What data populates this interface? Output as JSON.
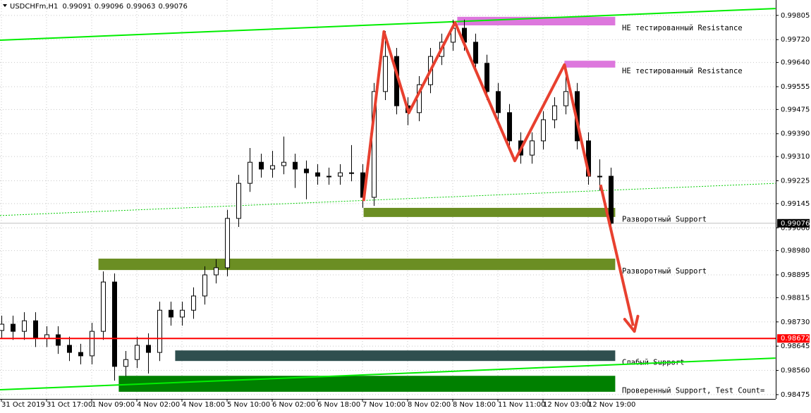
{
  "chart_data": {
    "type": "candlestick",
    "symbol": "USDCHFm,H1",
    "header_values": [
      0.99091,
      0.99096,
      0.99063,
      0.99076
    ],
    "open": [
      0.987,
      0.98722,
      0.98697,
      0.98734,
      0.98672,
      0.98685,
      0.98648,
      0.98623,
      0.98611,
      0.98697,
      0.9887,
      0.98574,
      0.98598,
      0.98648,
      0.98623,
      0.98771,
      0.98747,
      0.98771,
      0.98821,
      0.98895,
      0.9892,
      0.99093,
      0.99216,
      0.9929,
      0.99266,
      0.99278,
      0.9929,
      0.99266,
      0.99253,
      0.99241,
      0.99241,
      0.99253,
      0.99253,
      0.99167,
      0.99538,
      0.99661,
      0.99488,
      0.99464,
      0.99562,
      0.99661,
      0.99711,
      0.9976,
      0.99711,
      0.99637,
      0.99538,
      0.99464,
      0.99365,
      0.99315,
      0.99365,
      0.99439,
      0.99488,
      0.99538,
      0.99365,
      0.99241,
      0.99241
    ],
    "high": [
      0.98752,
      0.98752,
      0.98764,
      0.98764,
      0.98715,
      0.98715,
      0.98678,
      0.98653,
      0.98727,
      0.98907,
      0.989,
      0.98628,
      0.98678,
      0.9869,
      0.98801,
      0.98801,
      0.98801,
      0.98851,
      0.98925,
      0.9895,
      0.99123,
      0.99246,
      0.9934,
      0.9932,
      0.9933,
      0.9938,
      0.9932,
      0.99296,
      0.99283,
      0.99271,
      0.99283,
      0.9935,
      0.99283,
      0.99568,
      0.9975,
      0.99691,
      0.99518,
      0.99592,
      0.99691,
      0.99741,
      0.9979,
      0.9979,
      0.99741,
      0.99667,
      0.99568,
      0.99494,
      0.99395,
      0.99395,
      0.99469,
      0.99518,
      0.9959,
      0.99568,
      0.99395,
      0.993,
      0.99271
    ],
    "low": [
      0.9867,
      0.98667,
      0.98667,
      0.98642,
      0.98642,
      0.98618,
      0.98593,
      0.98581,
      0.98581,
      0.98667,
      0.98524,
      0.9854,
      0.98568,
      0.98549,
      0.98593,
      0.98717,
      0.98717,
      0.98741,
      0.98791,
      0.98865,
      0.9889,
      0.99063,
      0.99186,
      0.99236,
      0.99236,
      0.99248,
      0.992,
      0.9916,
      0.99211,
      0.99211,
      0.99211,
      0.99223,
      0.9913,
      0.99137,
      0.99508,
      0.99458,
      0.9942,
      0.99434,
      0.99532,
      0.99631,
      0.99681,
      0.99681,
      0.99607,
      0.99508,
      0.99434,
      0.99335,
      0.99285,
      0.99285,
      0.99335,
      0.99409,
      0.99458,
      0.99335,
      0.99211,
      0.9919,
      0.9906
    ],
    "close": [
      0.98722,
      0.98697,
      0.98734,
      0.98672,
      0.98685,
      0.98648,
      0.98623,
      0.98611,
      0.98697,
      0.9887,
      0.98574,
      0.98598,
      0.98648,
      0.98623,
      0.98771,
      0.98747,
      0.98771,
      0.98821,
      0.98895,
      0.9892,
      0.99093,
      0.99216,
      0.9929,
      0.99266,
      0.99278,
      0.9929,
      0.99266,
      0.99253,
      0.99241,
      0.99241,
      0.99253,
      0.99253,
      0.99167,
      0.99538,
      0.99661,
      0.99488,
      0.99464,
      0.99562,
      0.99661,
      0.99711,
      0.9976,
      0.99711,
      0.99637,
      0.99538,
      0.99464,
      0.99365,
      0.99315,
      0.99365,
      0.99439,
      0.99488,
      0.99538,
      0.99365,
      0.99241,
      0.99241,
      0.99076
    ],
    "xticks": [
      {
        "value": 0,
        "label": "31 Oct 2019"
      },
      {
        "value": 4,
        "label": "31 Oct 17:00"
      },
      {
        "value": 8,
        "label": "1 Nov 09:00"
      },
      {
        "value": 12,
        "label": "4 Nov 02:00"
      },
      {
        "value": 16,
        "label": "4 Nov 18:00"
      },
      {
        "value": 20,
        "label": "5 Nov 10:00"
      },
      {
        "value": 24,
        "label": "6 Nov 02:00"
      },
      {
        "value": 28,
        "label": "6 Nov 18:00"
      },
      {
        "value": 32,
        "label": "7 Nov 10:00"
      },
      {
        "value": 36,
        "label": "8 Nov 02:00"
      },
      {
        "value": 40,
        "label": "8 Nov 18:00"
      },
      {
        "value": 44,
        "label": "11 Nov 11:00"
      },
      {
        "value": 48,
        "label": "12 Nov 03:00"
      },
      {
        "value": 52,
        "label": "12 Nov 19:00"
      }
    ],
    "ylim": [
      0.9846,
      0.99859
    ],
    "yticks": [
      {
        "value": 0.99805,
        "label": "0.99805"
      },
      {
        "value": 0.9972,
        "label": "0.99720"
      },
      {
        "value": 0.9964,
        "label": "0.99640"
      },
      {
        "value": 0.99555,
        "label": "0.99555"
      },
      {
        "value": 0.99475,
        "label": "0.99475"
      },
      {
        "value": 0.9939,
        "label": "0.99390"
      },
      {
        "value": 0.9931,
        "label": "0.99310"
      },
      {
        "value": 0.99225,
        "label": "0.99225"
      },
      {
        "value": 0.99145,
        "label": "0.99145"
      },
      {
        "value": 0.9906,
        "label": "0.99060"
      },
      {
        "value": 0.9898,
        "label": "0.98980"
      },
      {
        "value": 0.98895,
        "label": "0.98895"
      },
      {
        "value": 0.98815,
        "label": "0.98815"
      },
      {
        "value": 0.9873,
        "label": "0.98730"
      },
      {
        "value": 0.98645,
        "label": "0.98645"
      },
      {
        "value": 0.9856,
        "label": "0.98560"
      },
      {
        "value": 0.98475,
        "label": "0.98475"
      }
    ],
    "last_price": 0.99076,
    "level": 0.98672,
    "zones": [
      {
        "label": "НЕ тестированный Resistance",
        "top": 0.998,
        "bottom": 0.9977,
        "from": 40.4,
        "to": 54.4,
        "color": "#dd77dd"
      },
      {
        "label": "НЕ тестированный Resistance",
        "top": 0.99646,
        "bottom": 0.99622,
        "from": 49.9,
        "to": 54.4,
        "color": "#dd77dd"
      },
      {
        "label": "Разворотный Support",
        "top": 0.9913,
        "bottom": 0.99098,
        "from": 32.1,
        "to": 54.4,
        "color": "#6b8e23"
      },
      {
        "label": "Разворотный Support",
        "top": 0.98952,
        "bottom": 0.98912,
        "from": 8.6,
        "to": 54.4,
        "color": "#6b8e23"
      },
      {
        "label": "Слабый Support",
        "top": 0.9863,
        "bottom": 0.98593,
        "from": 15.4,
        "to": 54.4,
        "color": "#2f4f4f"
      },
      {
        "label": "Проверенный Support, Test Count=",
        "top": 0.98541,
        "bottom": 0.98485,
        "from": 10.4,
        "to": 54.4,
        "color": "#008000"
      }
    ],
    "trendlines": [
      {
        "x": [
          -0.125,
          68.6
        ],
        "y": [
          0.99718,
          0.99829
        ],
        "color": "#00ee00",
        "style": "solid"
      },
      {
        "x": [
          -0.125,
          68.6
        ],
        "y": [
          0.98492,
          0.98603
        ],
        "color": "#00ee00",
        "style": "solid"
      },
      {
        "x": [
          -0.125,
          68.6
        ],
        "y": [
          0.99103,
          0.99216
        ],
        "color": "#00cc00",
        "style": "dotted"
      }
    ],
    "zigzag": {
      "x": [
        32.1,
        33.9,
        36.1,
        40.2,
        45.5,
        49.9,
        52.1
      ],
      "y": [
        0.99154,
        0.99748,
        0.99463,
        0.9978,
        0.99295,
        0.99632,
        0.99241
      ],
      "color": "#e8402f"
    },
    "arrow": {
      "x": [
        53.1,
        56.1
      ],
      "y": [
        0.99211,
        0.98697
      ],
      "color": "#e8402f"
    }
  }
}
